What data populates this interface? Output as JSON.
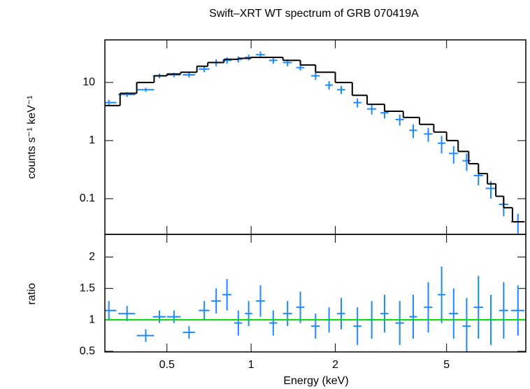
{
  "chart_data": [
    {
      "type": "errorbar",
      "title": "Swift–XRT WT spectrum of GRB 070419A",
      "ylabel": "counts s⁻¹ keV⁻¹",
      "xlog": true,
      "ylog": true,
      "xlim": [
        0.3,
        9.6
      ],
      "ylim": [
        0.0243,
        54
      ],
      "xticks": [
        0.5,
        1,
        2,
        5
      ],
      "yticks": [
        0.1,
        1,
        10
      ],
      "series": [
        {
          "color": "#1e88ff",
          "x": [
            0.31,
            0.36,
            0.42,
            0.47,
            0.53,
            0.6,
            0.68,
            0.75,
            0.82,
            0.9,
            0.98,
            1.08,
            1.2,
            1.35,
            1.5,
            1.7,
            1.9,
            2.1,
            2.4,
            2.7,
            3.0,
            3.4,
            3.8,
            4.3,
            4.8,
            5.3,
            5.9,
            6.5,
            7.2,
            8.0,
            9.0
          ],
          "xerr": [
            0.02,
            0.025,
            0.03,
            0.025,
            0.03,
            0.03,
            0.03,
            0.03,
            0.03,
            0.03,
            0.03,
            0.04,
            0.04,
            0.05,
            0.05,
            0.06,
            0.06,
            0.07,
            0.08,
            0.1,
            0.1,
            0.12,
            0.12,
            0.15,
            0.15,
            0.2,
            0.2,
            0.25,
            0.3,
            0.3,
            0.5
          ],
          "values": [
            4.5,
            6.2,
            7.5,
            13,
            13.5,
            13.5,
            17,
            22,
            24,
            25,
            27,
            30,
            24,
            22,
            18,
            13,
            9,
            7.5,
            4.5,
            3.5,
            3.0,
            2.3,
            1.5,
            1.3,
            0.9,
            0.6,
            0.45,
            0.25,
            0.15,
            0.08,
            0.04
          ],
          "yerr": [
            0.5,
            0.6,
            0.6,
            1.2,
            1.2,
            1.3,
            2,
            3,
            3,
            3,
            3,
            4,
            3,
            3,
            2,
            2,
            1.5,
            1.2,
            0.8,
            0.7,
            0.6,
            0.5,
            0.4,
            0.35,
            0.3,
            0.2,
            0.15,
            0.08,
            0.05,
            0.03,
            0.015
          ]
        },
        {
          "type": "step",
          "color": "#000000",
          "bins": [
            0.3,
            0.34,
            0.39,
            0.45,
            0.5,
            0.56,
            0.64,
            0.7,
            0.8,
            0.9,
            1.0,
            1.15,
            1.3,
            1.5,
            1.7,
            2.0,
            2.3,
            2.6,
            3.0,
            3.5,
            4.0,
            4.5,
            5.0,
            5.5,
            6.0,
            6.5,
            7.0,
            7.5,
            8.0,
            8.6,
            9.5
          ],
          "values": [
            4,
            6.5,
            10,
            13,
            14,
            15,
            19,
            22,
            25,
            26,
            27,
            27,
            24,
            20,
            15,
            10,
            6,
            4.2,
            3.2,
            2.5,
            1.9,
            1.4,
            1.0,
            0.65,
            0.4,
            0.27,
            0.18,
            0.11,
            0.07,
            0.04
          ]
        }
      ]
    },
    {
      "type": "errorbar",
      "xlabel": "Energy (keV)",
      "ylabel": "ratio",
      "xlog": true,
      "xlim": [
        0.3,
        9.6
      ],
      "ylim": [
        0.49,
        2.36
      ],
      "xticks": [
        0.5,
        1,
        2,
        5
      ],
      "yticks": [
        0.5,
        1,
        1.5,
        2
      ],
      "reference_line": {
        "value": 1,
        "color": "#00dd00"
      },
      "series": [
        {
          "color": "#1e88ff",
          "x": [
            0.31,
            0.36,
            0.42,
            0.47,
            0.53,
            0.6,
            0.68,
            0.75,
            0.82,
            0.9,
            0.98,
            1.08,
            1.2,
            1.35,
            1.5,
            1.7,
            1.9,
            2.1,
            2.4,
            2.7,
            3.0,
            3.4,
            3.8,
            4.3,
            4.8,
            5.3,
            5.9,
            6.5,
            7.2,
            8.0,
            9.0
          ],
          "xerr": [
            0.02,
            0.025,
            0.03,
            0.025,
            0.03,
            0.03,
            0.03,
            0.03,
            0.03,
            0.03,
            0.03,
            0.04,
            0.04,
            0.05,
            0.05,
            0.06,
            0.06,
            0.07,
            0.08,
            0.1,
            0.1,
            0.12,
            0.12,
            0.15,
            0.15,
            0.2,
            0.2,
            0.25,
            0.3,
            0.3,
            0.5
          ],
          "values": [
            1.15,
            1.1,
            0.75,
            1.05,
            1.05,
            0.8,
            1.15,
            1.3,
            1.4,
            0.95,
            1.1,
            1.3,
            0.95,
            1.1,
            1.2,
            0.9,
            1.0,
            1.1,
            0.9,
            1.0,
            1.1,
            0.95,
            1.05,
            1.2,
            1.4,
            1.1,
            0.9,
            1.2,
            1.0,
            1.15,
            1.15
          ],
          "yerr": [
            0.15,
            0.12,
            0.1,
            0.1,
            0.1,
            0.1,
            0.15,
            0.2,
            0.25,
            0.2,
            0.2,
            0.25,
            0.2,
            0.2,
            0.25,
            0.2,
            0.2,
            0.25,
            0.3,
            0.3,
            0.3,
            0.35,
            0.35,
            0.4,
            0.45,
            0.4,
            0.45,
            0.5,
            0.4,
            0.45,
            0.4
          ]
        }
      ]
    }
  ]
}
